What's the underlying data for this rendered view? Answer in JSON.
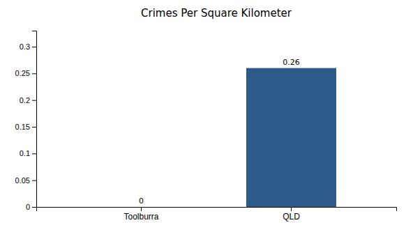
{
  "chart_data": {
    "type": "bar",
    "title": "Crimes Per Square Kilometer",
    "categories": [
      "Toolburra",
      "QLD"
    ],
    "values": [
      0,
      0.26
    ],
    "color": "#2e5b8a",
    "ylim": [
      0,
      0.33
    ],
    "yticks": [
      0,
      0.05,
      0.1,
      0.15,
      0.2,
      0.25,
      0.3
    ],
    "grid": false,
    "data_labels": true
  }
}
